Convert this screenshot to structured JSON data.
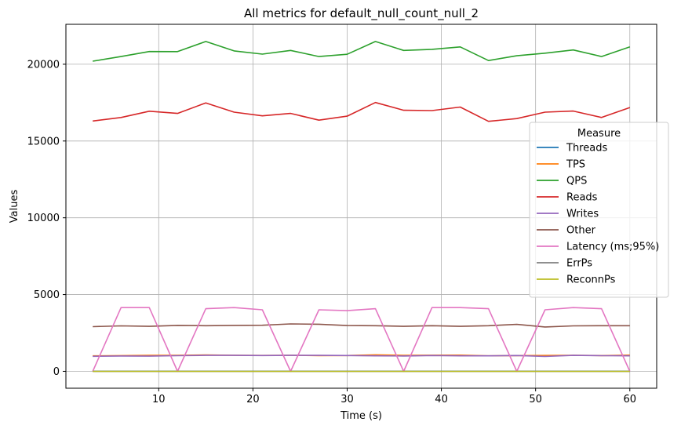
{
  "chart_data": {
    "type": "line",
    "title": "All metrics for default_null_count_null_2",
    "xlabel": "Time (s)",
    "ylabel": "Values",
    "xlim": [
      0.15,
      62.85
    ],
    "ylim": [
      -1100,
      22600
    ],
    "xticks": [
      10,
      20,
      30,
      40,
      50,
      60
    ],
    "yticks": [
      0,
      5000,
      10000,
      15000,
      20000
    ],
    "grid": true,
    "legend": {
      "title": "Measure",
      "placement": "right"
    },
    "x": [
      3,
      6,
      9,
      12,
      15,
      18,
      21,
      24,
      27,
      30,
      33,
      36,
      39,
      42,
      45,
      48,
      51,
      54,
      57,
      60
    ],
    "series": [
      {
        "name": "Threads",
        "color": "#1f77b4",
        "values": [
          8,
          8,
          8,
          8,
          8,
          8,
          8,
          8,
          8,
          8,
          8,
          8,
          8,
          8,
          8,
          8,
          8,
          8,
          8,
          8
        ]
      },
      {
        "name": "TPS",
        "color": "#ff7f0e",
        "values": [
          1010,
          1025,
          1040,
          1041,
          1073,
          1043,
          1033,
          1045,
          1025,
          1032,
          1075,
          1045,
          1048,
          1057,
          1012,
          1027,
          1036,
          1046,
          1025,
          1057
        ]
      },
      {
        "name": "QPS",
        "color": "#2ca02c",
        "values": [
          20200,
          20500,
          20830,
          20820,
          21480,
          20870,
          20660,
          20900,
          20500,
          20650,
          21480,
          20900,
          20970,
          21130,
          20240,
          20550,
          20720,
          20930,
          20500,
          21130
        ]
      },
      {
        "name": "Reads",
        "color": "#d62728",
        "values": [
          16300,
          16530,
          16940,
          16800,
          17480,
          16880,
          16640,
          16800,
          16360,
          16620,
          17510,
          17000,
          16980,
          17210,
          16280,
          16460,
          16880,
          16950,
          16530,
          17180
        ]
      },
      {
        "name": "Writes",
        "color": "#9467bd",
        "values": [
          980,
          1000,
          990,
          1020,
          1040,
          1040,
          1030,
          1040,
          1040,
          1030,
          1010,
          1000,
          1030,
          1010,
          1010,
          1030,
          970,
          1040,
          1020,
          1010
        ]
      },
      {
        "name": "Other",
        "color": "#8c564b",
        "values": [
          2910,
          2960,
          2930,
          2990,
          2970,
          2990,
          3000,
          3090,
          3070,
          2980,
          2970,
          2930,
          2970,
          2930,
          2970,
          3060,
          2890,
          2960,
          2970,
          2970
        ]
      },
      {
        "name": "Latency (ms;95%)",
        "color": "#e377c2",
        "values": [
          0,
          4150,
          4150,
          0,
          4080,
          4150,
          4010,
          0,
          4010,
          3950,
          4080,
          0,
          4150,
          4150,
          4080,
          0,
          4010,
          4150,
          4080,
          0
        ]
      },
      {
        "name": "ErrPs",
        "color": "#7f7f7f",
        "values": [
          0,
          0,
          0,
          0,
          0,
          0,
          0,
          0,
          0,
          0,
          0,
          0,
          0,
          0,
          0,
          0,
          0,
          0,
          0,
          0
        ]
      },
      {
        "name": "ReconnPs",
        "color": "#bcbd22",
        "values": [
          0,
          0,
          0,
          0,
          0,
          0,
          0,
          0,
          0,
          0,
          0,
          0,
          0,
          0,
          0,
          0,
          0,
          0,
          0,
          0
        ]
      }
    ]
  }
}
